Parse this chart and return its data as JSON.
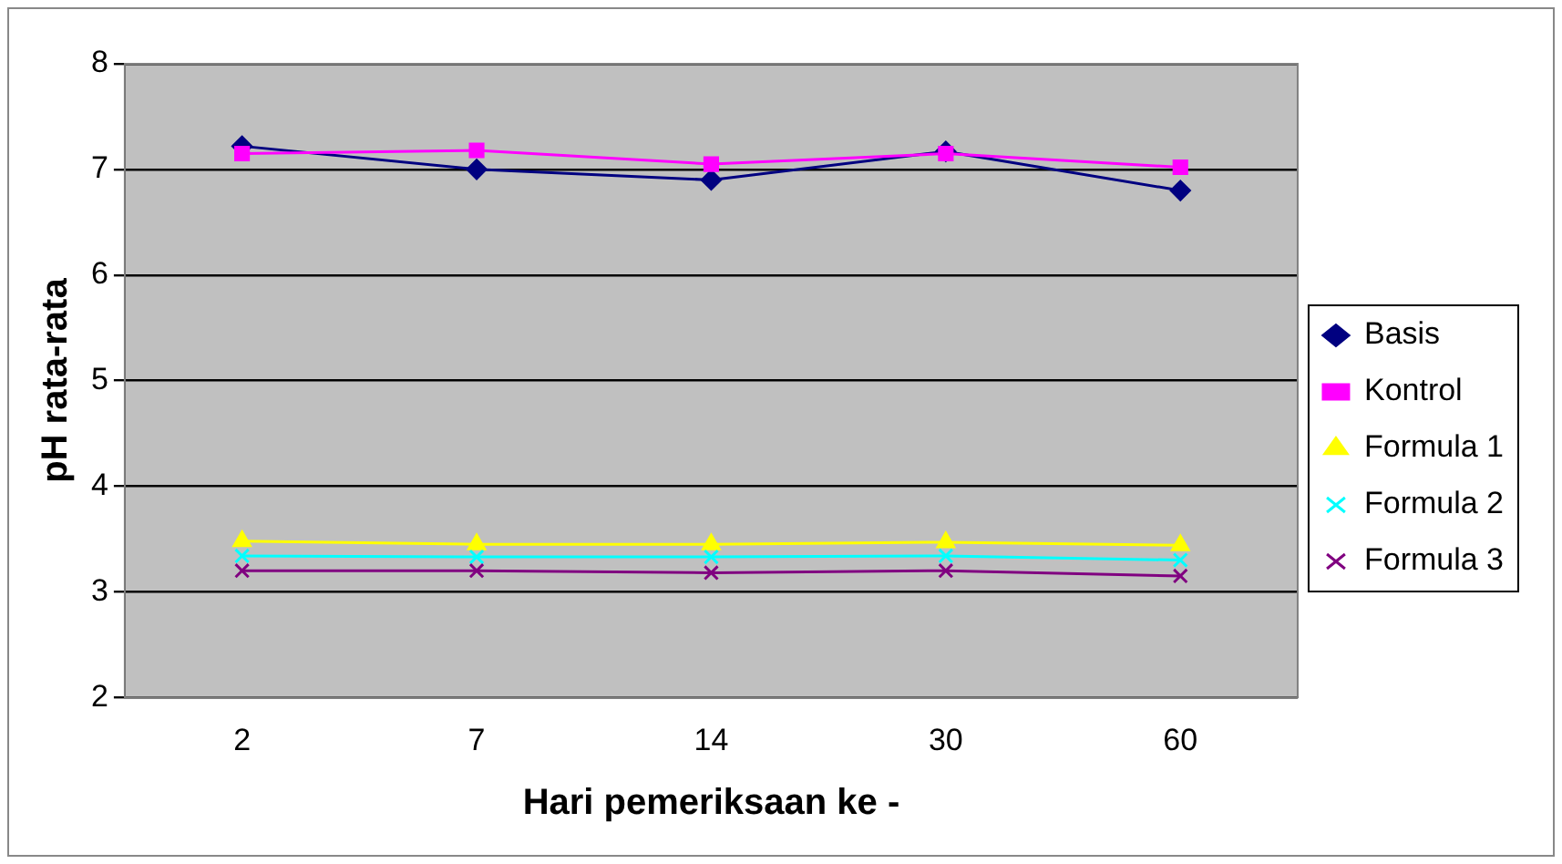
{
  "chart_data": {
    "type": "line",
    "xlabel": "Hari pemeriksaan ke -",
    "ylabel": "pH rata-rata",
    "categories": [
      "2",
      "7",
      "14",
      "30",
      "60"
    ],
    "series": [
      {
        "name": "Basis",
        "color": "#000080",
        "marker": "diamond",
        "values": [
          7.22,
          7.0,
          6.9,
          7.17,
          6.8
        ]
      },
      {
        "name": "Kontrol",
        "color": "#ff00ff",
        "marker": "square",
        "values": [
          7.15,
          7.18,
          7.05,
          7.15,
          7.02
        ]
      },
      {
        "name": "Formula 1",
        "color": "#ffff00",
        "marker": "triangle",
        "values": [
          3.48,
          3.45,
          3.45,
          3.47,
          3.44
        ]
      },
      {
        "name": "Formula 2",
        "color": "#00ffff",
        "marker": "cross",
        "values": [
          3.34,
          3.33,
          3.33,
          3.34,
          3.3
        ]
      },
      {
        "name": "Formula 3",
        "color": "#800080",
        "marker": "cross",
        "values": [
          3.2,
          3.2,
          3.18,
          3.2,
          3.15
        ]
      }
    ],
    "ylim": [
      2,
      8
    ],
    "yticks": [
      2,
      3,
      4,
      5,
      6,
      7,
      8
    ],
    "grid": "y",
    "legend": "right",
    "line_style": "solid"
  }
}
